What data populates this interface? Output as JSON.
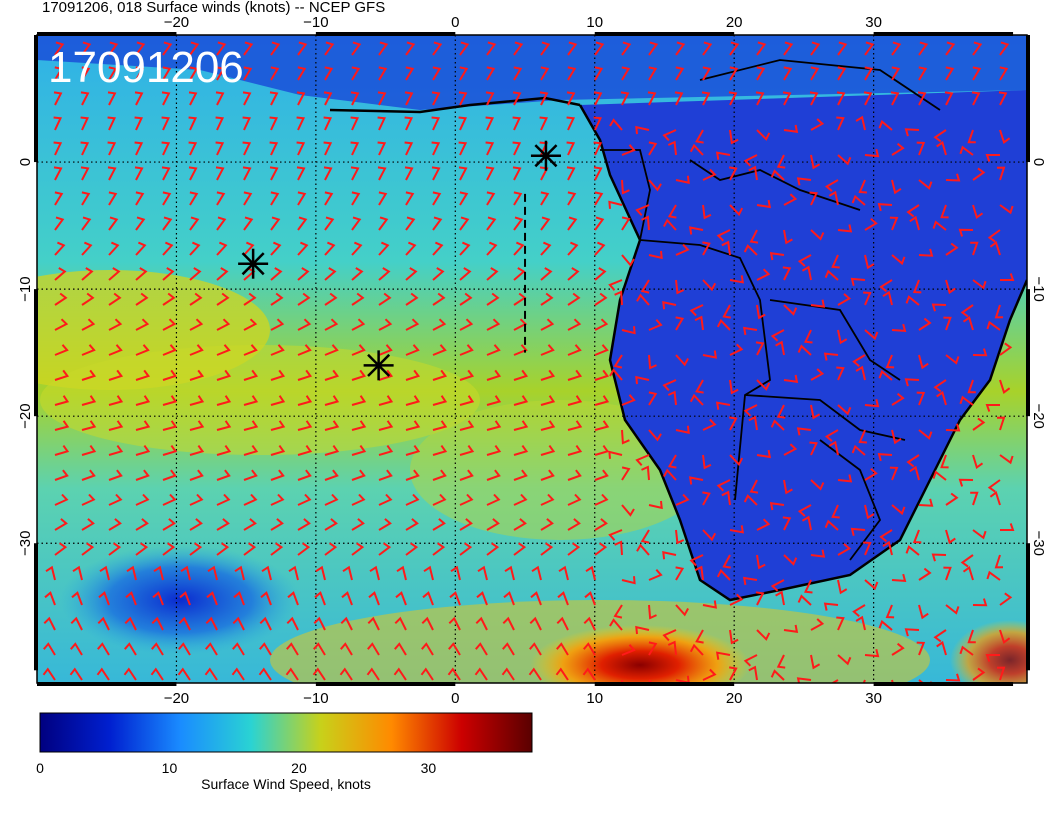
{
  "title": "17091206, 018 Surface winds (knots) -- NCEP GFS",
  "stamp": "17091206",
  "map": {
    "lon_range": [
      -30,
      41
    ],
    "lat_range": [
      -41,
      10
    ],
    "x_ticks": [
      -20,
      -10,
      0,
      10,
      20,
      30
    ],
    "y_ticks": [
      0,
      -10,
      -20,
      -30
    ],
    "grid": "dotted",
    "colors": {
      "ocean_fast": "#d2d61e",
      "ocean_mid": "#3cc8c8",
      "land": "#1a3ad2",
      "barb": "#ff1a1a",
      "outline": "#000000"
    }
  },
  "colorbar": {
    "label": "Surface Wind Speed, knots",
    "ticks": [
      0,
      10,
      20,
      30
    ],
    "range": [
      0,
      38
    ],
    "stops": [
      "#000080",
      "#0020d0",
      "#1a8cff",
      "#2ad3d3",
      "#c8d11a",
      "#ff8a00",
      "#cc0000",
      "#5a0000"
    ]
  },
  "markers": [
    {
      "name": "marker-1",
      "lon": 6.5,
      "lat": 0.5
    },
    {
      "name": "marker-2",
      "lon": -14.5,
      "lat": -8
    },
    {
      "name": "marker-3",
      "lon": -5.5,
      "lat": -16
    }
  ],
  "track_line": {
    "lon": 5,
    "lat_from": -2.5,
    "lat_to": -15
  }
}
